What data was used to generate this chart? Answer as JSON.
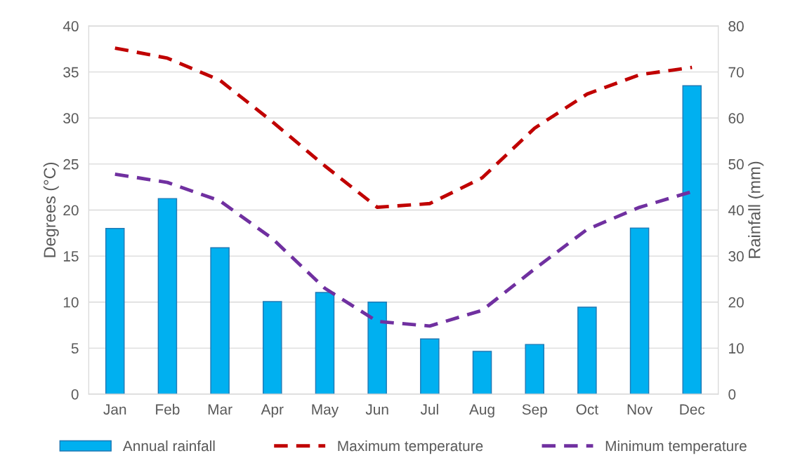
{
  "chart_data": {
    "type": "bar",
    "categories": [
      "Jan",
      "Feb",
      "Mar",
      "Apr",
      "May",
      "Jun",
      "Jul",
      "Aug",
      "Sep",
      "Oct",
      "Nov",
      "Dec"
    ],
    "ylabel": "Degrees (°C)",
    "y2label": "Rainfall (mm)",
    "ylim": [
      0,
      40
    ],
    "yticks": [
      0,
      5,
      10,
      15,
      20,
      25,
      30,
      35,
      40
    ],
    "y2lim": [
      0,
      80
    ],
    "y2ticks": [
      0,
      10,
      20,
      30,
      40,
      50,
      60,
      70,
      80
    ],
    "grid": "y",
    "legend": "bottom",
    "series": [
      {
        "name": "Annual rainfall",
        "axis": "y2",
        "color": "#00b0f0",
        "values": [
          36,
          42.5,
          31.8,
          20.1,
          22.1,
          20,
          12,
          9.3,
          10.8,
          18.9,
          36.1,
          67
        ]
      },
      {
        "name": "Maximum temperature",
        "type": "line",
        "line_style": "dashed",
        "color": "#c00000",
        "values": [
          37.6,
          36.5,
          34.1,
          29.6,
          24.8,
          20.3,
          20.7,
          23.5,
          28.9,
          32.6,
          34.7,
          35.5
        ]
      },
      {
        "name": "Minimum temperature",
        "type": "line",
        "line_style": "dashed",
        "color": "#7030a0",
        "values": [
          23.9,
          23.0,
          21.0,
          16.9,
          11.5,
          7.9,
          7.4,
          9.1,
          13.6,
          17.9,
          20.3,
          22.0
        ]
      }
    ]
  }
}
